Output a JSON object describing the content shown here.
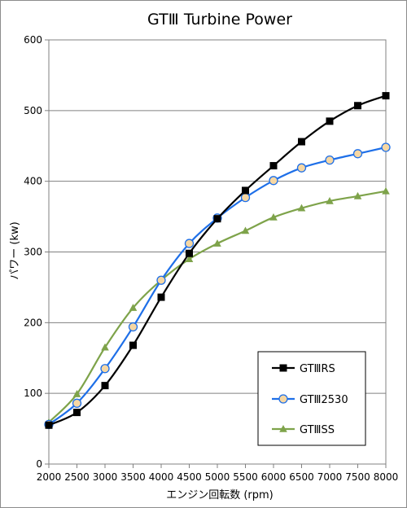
{
  "chart_data": {
    "type": "line",
    "title": "GTⅢ Turbine Power",
    "xlabel": "エンジン回転数 (rpm)",
    "ylabel": "パワー (kw)",
    "x": [
      2000,
      2500,
      3000,
      3500,
      4000,
      4500,
      5000,
      5500,
      6000,
      6500,
      7000,
      7500,
      8000
    ],
    "xlim": [
      2000,
      8000
    ],
    "ylim": [
      0,
      600
    ],
    "x_ticks": [
      2000,
      2500,
      3000,
      3500,
      4000,
      4500,
      5000,
      5500,
      6000,
      6500,
      7000,
      7500,
      8000
    ],
    "y_ticks": [
      0,
      100,
      200,
      300,
      400,
      500,
      600
    ],
    "grid": "horizontal",
    "legend_position": "bottom-right",
    "series": [
      {
        "name": "GTⅢRS",
        "color": "#000000",
        "marker": "square",
        "values": [
          55,
          73,
          111,
          168,
          236,
          298,
          347,
          387,
          422,
          456,
          485,
          507,
          521
        ]
      },
      {
        "name": "GTⅢ2530",
        "color": "#1e6fe8",
        "marker": "circle",
        "marker_fill": "#f6d7a3",
        "values": [
          56,
          86,
          135,
          194,
          260,
          312,
          348,
          377,
          401,
          419,
          430,
          439,
          448
        ]
      },
      {
        "name": "GTⅢSS",
        "color": "#7ea34a",
        "marker": "triangle",
        "values": [
          59,
          99,
          165,
          221,
          260,
          290,
          312,
          330,
          349,
          362,
          372,
          379,
          386
        ]
      }
    ]
  }
}
